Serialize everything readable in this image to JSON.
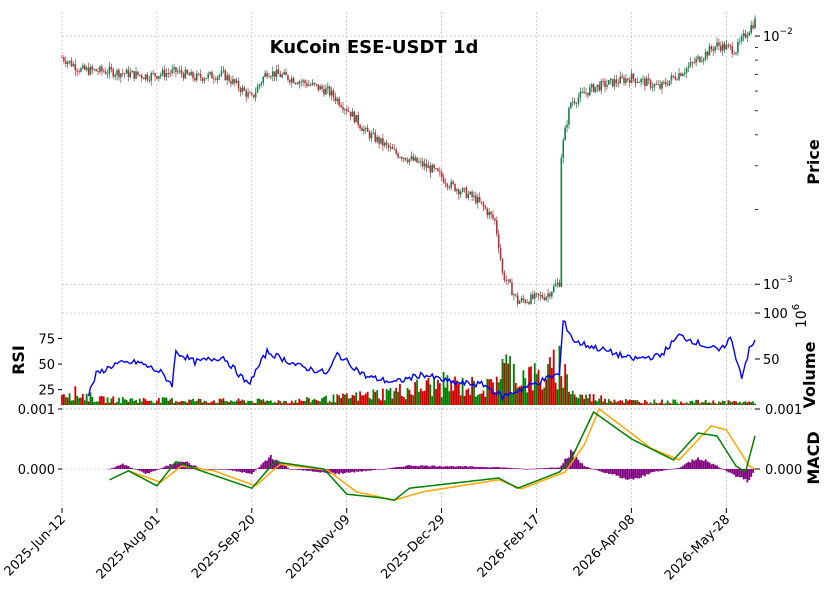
{
  "chart_data": {
    "type": "candlestick",
    "title": "KuCoin ESE-USDT 1d",
    "colors": {
      "up": "#1a7a4c",
      "down": "#b3303a",
      "grid": "#b0b0b0",
      "rsi": "#0000ff",
      "vol_up": "#008000",
      "vol_down": "#d00000",
      "macd": "#008000",
      "signal": "#ffa500",
      "hist": "#800080"
    },
    "x_ticks": [
      "2025-Jun-12",
      "2025-Aug-01",
      "2025-Sep-20",
      "2025-Nov-09",
      "2025-Dec-29",
      "2026-Feb-17",
      "2026-Apr-08",
      "2026-May-28"
    ],
    "price_panel": {
      "ylabel": "Price",
      "scale": "log",
      "ylim": [
        0.00078,
        0.0125
      ],
      "y_ticks": [
        "10^-2",
        "10^-3"
      ],
      "close_keypoints": [
        {
          "day": 0,
          "close": 0.0082
        },
        {
          "day": 10,
          "close": 0.0073
        },
        {
          "day": 25,
          "close": 0.0072
        },
        {
          "day": 45,
          "close": 0.0069
        },
        {
          "day": 60,
          "close": 0.0072
        },
        {
          "day": 70,
          "close": 0.0068
        },
        {
          "day": 85,
          "close": 0.007
        },
        {
          "day": 100,
          "close": 0.0056
        },
        {
          "day": 108,
          "close": 0.0072
        },
        {
          "day": 125,
          "close": 0.0066
        },
        {
          "day": 140,
          "close": 0.006
        },
        {
          "day": 150,
          "close": 0.0051
        },
        {
          "day": 160,
          "close": 0.0041
        },
        {
          "day": 175,
          "close": 0.0034
        },
        {
          "day": 195,
          "close": 0.0029
        },
        {
          "day": 205,
          "close": 0.0025
        },
        {
          "day": 218,
          "close": 0.0022
        },
        {
          "day": 228,
          "close": 0.0018
        },
        {
          "day": 232,
          "close": 0.0011
        },
        {
          "day": 240,
          "close": 0.00085
        },
        {
          "day": 255,
          "close": 0.0009
        },
        {
          "day": 262,
          "close": 0.00102
        },
        {
          "day": 263,
          "close": 0.0033
        },
        {
          "day": 268,
          "close": 0.0054
        },
        {
          "day": 280,
          "close": 0.0062
        },
        {
          "day": 300,
          "close": 0.0068
        },
        {
          "day": 315,
          "close": 0.0062
        },
        {
          "day": 330,
          "close": 0.0075
        },
        {
          "day": 345,
          "close": 0.0092
        },
        {
          "day": 355,
          "close": 0.0088
        },
        {
          "day": 365,
          "close": 0.0115
        }
      ]
    },
    "rsi_panel": {
      "ylabel": "RSI",
      "ylim": [
        10,
        100
      ],
      "y_ticks": [
        25,
        50,
        75
      ],
      "keypoints": [
        {
          "day": 14,
          "value": 20
        },
        {
          "day": 18,
          "value": 40
        },
        {
          "day": 28,
          "value": 50
        },
        {
          "day": 40,
          "value": 52
        },
        {
          "day": 52,
          "value": 42
        },
        {
          "day": 58,
          "value": 30
        },
        {
          "day": 60,
          "value": 62
        },
        {
          "day": 70,
          "value": 52
        },
        {
          "day": 85,
          "value": 57
        },
        {
          "day": 98,
          "value": 30
        },
        {
          "day": 108,
          "value": 62
        },
        {
          "day": 125,
          "value": 48
        },
        {
          "day": 140,
          "value": 41
        },
        {
          "day": 145,
          "value": 60
        },
        {
          "day": 160,
          "value": 38
        },
        {
          "day": 175,
          "value": 32
        },
        {
          "day": 190,
          "value": 40
        },
        {
          "day": 205,
          "value": 32
        },
        {
          "day": 222,
          "value": 30
        },
        {
          "day": 232,
          "value": 18
        },
        {
          "day": 245,
          "value": 28
        },
        {
          "day": 258,
          "value": 38
        },
        {
          "day": 262,
          "value": 40
        },
        {
          "day": 264,
          "value": 92
        },
        {
          "day": 270,
          "value": 72
        },
        {
          "day": 285,
          "value": 64
        },
        {
          "day": 300,
          "value": 55
        },
        {
          "day": 315,
          "value": 58
        },
        {
          "day": 325,
          "value": 78
        },
        {
          "day": 340,
          "value": 67
        },
        {
          "day": 347,
          "value": 63
        },
        {
          "day": 352,
          "value": 76
        },
        {
          "day": 358,
          "value": 38
        },
        {
          "day": 362,
          "value": 64
        },
        {
          "day": 365,
          "value": 72
        }
      ]
    },
    "volume_panel": {
      "ylabel": "Volume",
      "ylim": [
        0,
        100
      ],
      "y_ticks": [
        50,
        100
      ],
      "multiplier": "10^6",
      "keypoints": [
        {
          "day": 0,
          "value": 16
        },
        {
          "day": 20,
          "value": 6
        },
        {
          "day": 60,
          "value": 5
        },
        {
          "day": 120,
          "value": 4
        },
        {
          "day": 150,
          "value": 8
        },
        {
          "day": 175,
          "value": 14
        },
        {
          "day": 200,
          "value": 22
        },
        {
          "day": 225,
          "value": 18
        },
        {
          "day": 232,
          "value": 40
        },
        {
          "day": 245,
          "value": 30
        },
        {
          "day": 255,
          "value": 28
        },
        {
          "day": 262,
          "value": 45
        },
        {
          "day": 270,
          "value": 10
        },
        {
          "day": 300,
          "value": 4
        },
        {
          "day": 365,
          "value": 3
        }
      ]
    },
    "macd_panel": {
      "ylabel": "MACD",
      "ylim": [
        -0.00065,
        0.001
      ],
      "y_ticks": [
        "0.000",
        "0.001"
      ],
      "macd_keypoints": [
        {
          "day": 25,
          "value": -0.00018
        },
        {
          "day": 35,
          "value": -3e-05
        },
        {
          "day": 50,
          "value": -0.00028
        },
        {
          "day": 60,
          "value": 0.00012
        },
        {
          "day": 75,
          "value": -5e-05
        },
        {
          "day": 100,
          "value": -0.00032
        },
        {
          "day": 112,
          "value": 0.00012
        },
        {
          "day": 138,
          "value": 0.0
        },
        {
          "day": 150,
          "value": -0.00042
        },
        {
          "day": 168,
          "value": -0.00048
        },
        {
          "day": 175,
          "value": -0.00052
        },
        {
          "day": 183,
          "value": -0.00032
        },
        {
          "day": 230,
          "value": -0.00015
        },
        {
          "day": 240,
          "value": -0.00032
        },
        {
          "day": 262,
          "value": -5e-05
        },
        {
          "day": 268,
          "value": 0.00015
        },
        {
          "day": 280,
          "value": 0.00095
        },
        {
          "day": 300,
          "value": 0.0005
        },
        {
          "day": 322,
          "value": 0.00015
        },
        {
          "day": 335,
          "value": 0.0006
        },
        {
          "day": 345,
          "value": 0.00055
        },
        {
          "day": 355,
          "value": 5e-05
        },
        {
          "day": 360,
          "value": -5e-05
        },
        {
          "day": 365,
          "value": 0.00055
        }
      ],
      "signal_keypoints": [
        {
          "day": 35,
          "value": -3e-05
        },
        {
          "day": 52,
          "value": -0.00022
        },
        {
          "day": 63,
          "value": 5e-05
        },
        {
          "day": 80,
          "value": -3e-05
        },
        {
          "day": 102,
          "value": -0.00028
        },
        {
          "day": 115,
          "value": 8e-05
        },
        {
          "day": 140,
          "value": -2e-05
        },
        {
          "day": 155,
          "value": -0.00038
        },
        {
          "day": 175,
          "value": -0.00052
        },
        {
          "day": 190,
          "value": -0.00038
        },
        {
          "day": 230,
          "value": -0.00018
        },
        {
          "day": 242,
          "value": -0.00033
        },
        {
          "day": 265,
          "value": -5e-05
        },
        {
          "day": 275,
          "value": 0.0004
        },
        {
          "day": 283,
          "value": 0.001
        },
        {
          "day": 310,
          "value": 0.00035
        },
        {
          "day": 325,
          "value": 0.00015
        },
        {
          "day": 342,
          "value": 0.00072
        },
        {
          "day": 350,
          "value": 0.00065
        },
        {
          "day": 362,
          "value": 5e-05
        },
        {
          "day": 365,
          "value": 0.0
        }
      ],
      "hist_keypoints": [
        {
          "day": 25,
          "value": 0.0
        },
        {
          "day": 32,
          "value": 8e-05
        },
        {
          "day": 45,
          "value": -8e-05
        },
        {
          "day": 63,
          "value": 0.00015
        },
        {
          "day": 75,
          "value": -2e-05
        },
        {
          "day": 85,
          "value": 0.0
        },
        {
          "day": 100,
          "value": -8e-05
        },
        {
          "day": 110,
          "value": 0.00022
        },
        {
          "day": 120,
          "value": 0.0
        },
        {
          "day": 145,
          "value": -8e-05
        },
        {
          "day": 170,
          "value": 0.0
        },
        {
          "day": 183,
          "value": 6e-05
        },
        {
          "day": 230,
          "value": 3e-05
        },
        {
          "day": 245,
          "value": 0.0
        },
        {
          "day": 262,
          "value": 3e-05
        },
        {
          "day": 268,
          "value": 0.00028
        },
        {
          "day": 275,
          "value": 5e-05
        },
        {
          "day": 285,
          "value": -5e-05
        },
        {
          "day": 300,
          "value": -0.00018
        },
        {
          "day": 312,
          "value": -5e-05
        },
        {
          "day": 325,
          "value": 2e-05
        },
        {
          "day": 335,
          "value": 0.0002
        },
        {
          "day": 345,
          "value": 5e-05
        },
        {
          "day": 355,
          "value": -0.00012
        },
        {
          "day": 362,
          "value": -0.0002
        },
        {
          "day": 365,
          "value": 0.0
        }
      ]
    },
    "days": 366
  }
}
